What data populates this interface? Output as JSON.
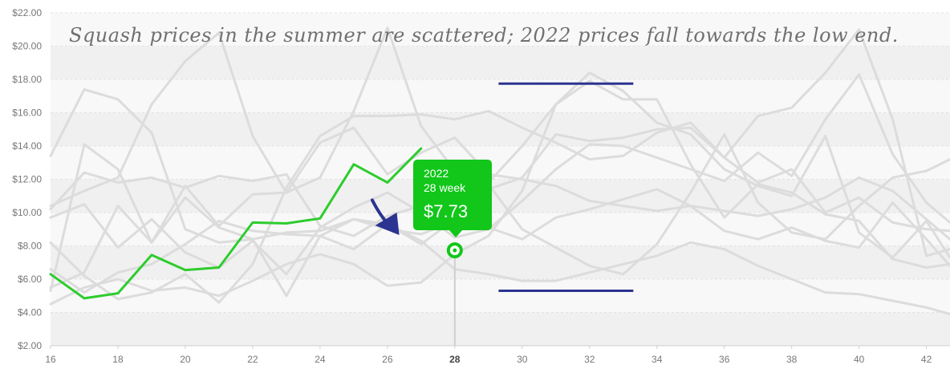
{
  "annotation": {
    "text": "Squash prices in the summer are scattered; 2022 prices fall towards the low end."
  },
  "tooltip": {
    "year": "2022",
    "week": "28 week",
    "price": "$7.73"
  },
  "colors": {
    "highlight": "#2ecc2e",
    "tooltip_bg": "#12c61a",
    "background_series": "#dcdcdc",
    "annotation_lines": "#2b3490",
    "band_dark": "#f0f0f0",
    "band_light": "#f8f8f8"
  },
  "chart_data": {
    "type": "line",
    "x_range": [
      16,
      42.7
    ],
    "y_range": [
      2,
      22
    ],
    "x_ticks": [
      16,
      18,
      20,
      22,
      24,
      26,
      28,
      30,
      32,
      34,
      36,
      38,
      40,
      42
    ],
    "x_tick_labels": [
      "16",
      "18",
      "20",
      "22",
      "24",
      "26",
      "28",
      "30",
      "32",
      "34",
      "36",
      "38",
      "40",
      "42"
    ],
    "y_ticks": [
      2,
      4,
      6,
      8,
      10,
      12,
      14,
      16,
      18,
      20,
      22
    ],
    "y_tick_labels": [
      "$2.00",
      "$4.00",
      "$6.00",
      "$8.00",
      "$10.00",
      "$12.00",
      "$14.00",
      "$16.00",
      "$18.00",
      "$20.00",
      "$22.00"
    ],
    "highlight_x": 28,
    "highlight_series": {
      "name": "2022",
      "x": [
        16,
        17,
        18,
        19,
        20,
        21,
        22,
        23,
        24,
        25,
        26,
        27,
        28
      ],
      "values": [
        6.3,
        4.85,
        5.15,
        7.45,
        6.55,
        6.7,
        9.4,
        9.35,
        9.65,
        12.9,
        11.8,
        13.85,
        7.73
      ]
    },
    "series": [
      {
        "x": [
          16,
          17,
          18,
          19,
          20,
          21,
          22,
          23,
          24,
          25,
          26,
          27,
          28,
          29,
          30,
          31,
          32,
          33,
          34,
          35,
          36,
          37,
          38,
          39,
          40,
          41,
          42,
          42.7
        ],
        "values": [
          13.4,
          17.4,
          16.8,
          14.8,
          9.0,
          8.2,
          8.4,
          8.8,
          8.9,
          9.6,
          9.0,
          8.7,
          9.5,
          11.8,
          14.0,
          16.5,
          18.4,
          17.3,
          15.4,
          14.7,
          12.6,
          11.6,
          11.0,
          14.6,
          8.8,
          7.3,
          9.5,
          7.3
        ]
      },
      {
        "x": [
          16,
          17,
          18,
          19,
          20,
          21,
          22,
          23,
          24,
          25,
          26,
          27,
          28,
          29,
          30,
          31,
          32,
          33,
          34,
          35,
          36,
          37,
          38,
          39,
          40,
          41,
          42,
          42.7
        ],
        "values": [
          10.4,
          11.3,
          12.1,
          16.5,
          19.1,
          20.8,
          14.6,
          11.2,
          12.1,
          16.1,
          21.1,
          15.2,
          12.5,
          11.7,
          9.0,
          7.9,
          6.8,
          6.3,
          8.1,
          11.2,
          14.7,
          10.6,
          8.8,
          8.4,
          10.4,
          12.1,
          12.5,
          13.2
        ]
      },
      {
        "x": [
          16,
          17,
          18,
          19,
          20,
          21,
          22,
          23,
          24,
          25,
          26,
          27,
          28,
          29,
          30,
          31,
          32,
          33,
          34,
          35,
          36,
          37,
          38,
          39,
          40,
          41,
          42,
          42.7
        ],
        "values": [
          5.3,
          14.1,
          12.6,
          8.2,
          10.9,
          9.1,
          8.4,
          5.0,
          8.6,
          9.6,
          9.3,
          8.1,
          9.6,
          11.4,
          12.1,
          14.7,
          14.3,
          14.5,
          15.0,
          15.1,
          13.3,
          15.8,
          16.3,
          18.4,
          21.0,
          15.6,
          7.4,
          7.8
        ]
      },
      {
        "x": [
          16,
          17,
          18,
          19,
          20,
          21,
          22,
          23,
          24,
          25,
          26,
          27,
          28,
          29,
          30,
          31,
          32,
          33,
          34,
          35,
          36,
          37,
          38,
          39,
          40,
          41,
          42,
          42.7
        ],
        "values": [
          8.2,
          6.2,
          4.8,
          5.2,
          6.3,
          4.6,
          6.9,
          11.5,
          14.6,
          15.8,
          15.8,
          15.9,
          15.6,
          16.1,
          15.1,
          14.2,
          13.2,
          13.4,
          14.8,
          15.4,
          13.3,
          11.8,
          12.6,
          10.0,
          10.9,
          9.4,
          9.0,
          8.9
        ]
      },
      {
        "x": [
          16,
          17,
          18,
          19,
          20,
          21,
          22,
          23,
          24,
          25,
          26,
          27,
          28,
          29,
          30,
          31,
          32,
          33,
          34,
          35,
          36,
          37,
          38,
          39,
          40,
          41,
          42,
          42.7
        ],
        "values": [
          6.6,
          5.2,
          6.4,
          6.9,
          8.1,
          9.5,
          8.9,
          8.7,
          8.6,
          7.8,
          9.3,
          8.3,
          6.6,
          6.3,
          5.9,
          5.9,
          6.4,
          6.9,
          7.4,
          8.2,
          7.8,
          6.8,
          6.0,
          5.2,
          5.1,
          4.7,
          4.3,
          3.9
        ]
      },
      {
        "x": [
          16,
          17,
          18,
          19,
          20,
          21,
          22,
          23,
          24,
          25,
          26,
          27,
          28,
          29,
          30,
          31,
          32,
          33,
          34,
          35,
          36,
          37,
          38,
          39,
          40,
          41,
          42,
          42.7
        ],
        "values": [
          4.5,
          5.5,
          6.0,
          5.3,
          5.5,
          5.0,
          5.9,
          6.9,
          7.5,
          6.9,
          5.6,
          5.8,
          7.5,
          8.6,
          11.3,
          16.5,
          17.9,
          16.8,
          16.8,
          12.9,
          9.7,
          11.7,
          11.2,
          9.9,
          9.5,
          7.2,
          6.7,
          6.9
        ]
      },
      {
        "x": [
          16,
          17,
          18,
          19,
          20,
          21,
          22,
          23,
          24,
          25,
          26,
          27,
          28,
          29,
          30,
          31,
          32,
          33,
          34,
          35,
          36,
          37,
          38,
          39,
          40,
          41,
          42,
          42.7
        ],
        "values": [
          5.5,
          6.4,
          10.4,
          8.2,
          11.6,
          9.2,
          11.1,
          11.2,
          14.2,
          15.1,
          12.3,
          13.6,
          14.5,
          12.3,
          12.0,
          11.6,
          10.7,
          10.4,
          10.1,
          10.4,
          10.1,
          9.8,
          10.2,
          10.9,
          12.1,
          11.3,
          9.6,
          8.4
        ]
      },
      {
        "x": [
          16,
          17,
          18,
          19,
          20,
          21,
          22,
          23,
          24,
          25,
          26,
          27,
          28,
          29,
          30,
          31,
          32,
          33,
          34,
          35,
          36,
          37,
          38,
          39,
          40,
          41,
          42,
          42.7
        ],
        "values": [
          10.2,
          12.4,
          11.8,
          12.1,
          11.5,
          12.2,
          11.9,
          12.3,
          9.2,
          8.6,
          9.8,
          10.4,
          10.1,
          9.1,
          8.4,
          9.7,
          10.2,
          10.8,
          11.4,
          10.4,
          8.9,
          8.4,
          9.1,
          8.3,
          7.9,
          10.6,
          8.4,
          6.8
        ]
      },
      {
        "x": [
          16,
          17,
          18,
          19,
          20,
          21,
          22,
          23,
          24,
          25,
          26,
          27,
          28,
          29,
          30,
          31,
          32,
          33,
          34,
          35,
          36,
          37,
          38,
          39,
          40,
          41,
          42,
          42.7
        ],
        "values": [
          9.7,
          10.5,
          7.9,
          9.6,
          7.6,
          6.7,
          8.3,
          6.3,
          9.1,
          10.3,
          11.2,
          10.0,
          8.5,
          9.0,
          10.7,
          12.6,
          14.1,
          14.0,
          13.3,
          12.6,
          11.9,
          13.6,
          12.2,
          15.6,
          18.3,
          13.5,
          10.6,
          9.4
        ]
      }
    ],
    "annotations": [
      {
        "type": "hline",
        "y": 17.75,
        "x_from": 29.3,
        "x_to": 33.3
      },
      {
        "type": "hline",
        "y": 5.3,
        "x_from": 29.3,
        "x_to": 33.3
      },
      {
        "type": "arrow",
        "from": [
          25.55,
          10.75
        ],
        "to": [
          26.35,
          8.65
        ]
      }
    ],
    "title": "",
    "xlabel": "",
    "ylabel": "",
    "grid": true,
    "legend": "none"
  }
}
